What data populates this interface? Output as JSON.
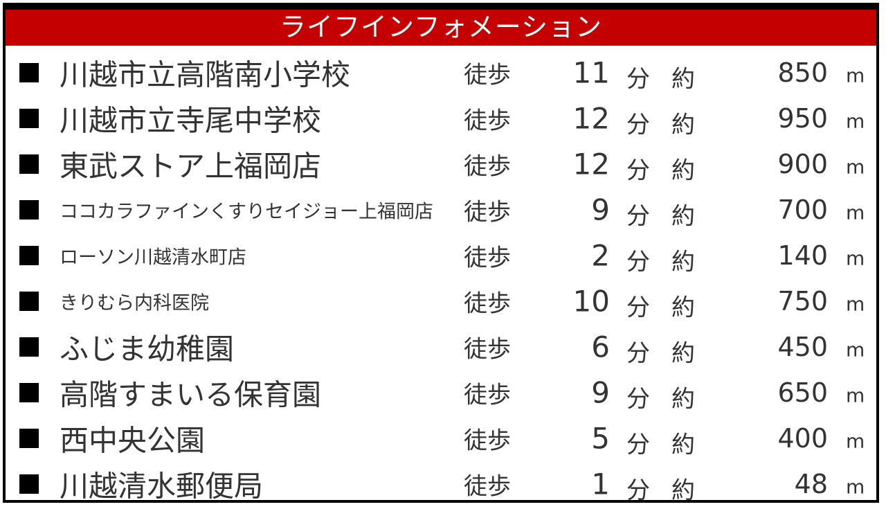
{
  "title": "ライフインフォメーション",
  "colors": {
    "header_bg": "#c40000",
    "header_text": "#ffffff",
    "text": "#333333",
    "border": "#000000"
  },
  "labels": {
    "walk": "徒歩",
    "minutes": "分",
    "approx": "約",
    "unit": "m"
  },
  "rows": [
    {
      "name": "川越市立高階南小学校",
      "minutes": "11",
      "distance": "850",
      "small": false
    },
    {
      "name": "川越市立寺尾中学校",
      "minutes": "12",
      "distance": "950",
      "small": false
    },
    {
      "name": "東武ストア上福岡店",
      "minutes": "12",
      "distance": "900",
      "small": false
    },
    {
      "name": "ココカラファインくすりセイジョー上福岡店",
      "minutes": "9",
      "distance": "700",
      "small": true
    },
    {
      "name": "ローソン川越清水町店",
      "minutes": "2",
      "distance": "140",
      "small": true
    },
    {
      "name": "きりむら内科医院",
      "minutes": "10",
      "distance": "750",
      "small": true
    },
    {
      "name": "ふじま幼稚園",
      "minutes": "6",
      "distance": "450",
      "small": false
    },
    {
      "name": "高階すまいる保育園",
      "minutes": "9",
      "distance": "650",
      "small": false
    },
    {
      "name": "西中央公園",
      "minutes": "5",
      "distance": "400",
      "small": false
    },
    {
      "name": "川越清水郵便局",
      "minutes": "1",
      "distance": "48",
      "small": false
    }
  ]
}
